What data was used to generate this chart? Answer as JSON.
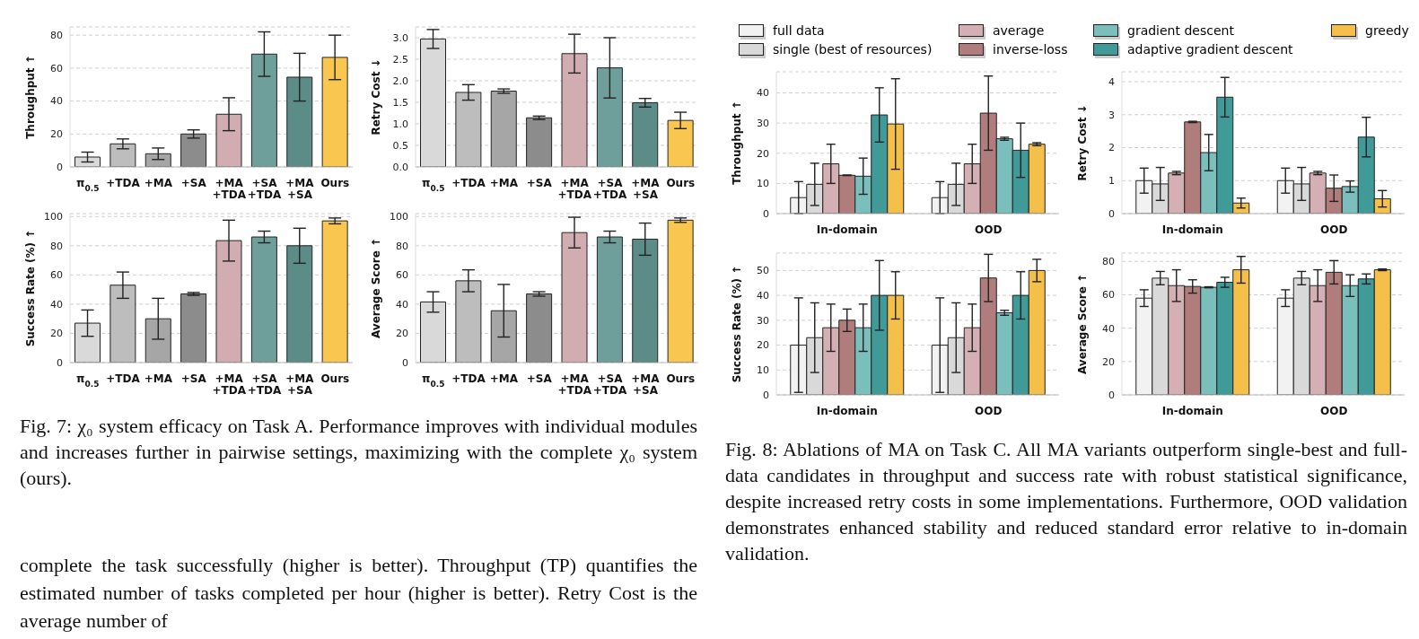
{
  "chart_data": [
    {
      "type": "bar",
      "ylabel": "Throughput ↑",
      "categories": [
        "π$_{0.5}$",
        "+TDA",
        "+MA",
        "+SA",
        "+MA +TDA",
        "+SA +TDA",
        "+MA +SA",
        "Ours"
      ],
      "values": [
        6,
        14,
        8,
        20,
        32,
        68.5,
        54.5,
        66.5
      ],
      "errors": [
        3,
        3,
        3.5,
        2.5,
        10,
        13.5,
        14.5,
        13.5
      ],
      "colors": [
        "#d9d9d9",
        "#bdbdbd",
        "#a6a6a6",
        "#8c8c8c",
        "#d1adb1",
        "#6f9f9b",
        "#5b8c88",
        "#f9c74f"
      ],
      "ylim": [
        0,
        85
      ],
      "yticks": [
        0,
        20,
        40,
        60,
        80
      ],
      "grid": "y"
    },
    {
      "type": "bar",
      "ylabel": "Retry Cost ↓",
      "categories": [
        "π$_{0.5}$",
        "+TDA",
        "+MA",
        "+SA",
        "+MA +TDA",
        "+SA +TDA",
        "+MA +SA",
        "Ours"
      ],
      "values": [
        2.97,
        1.73,
        1.76,
        1.14,
        2.63,
        2.3,
        1.49,
        1.08
      ],
      "errors": [
        0.22,
        0.18,
        0.05,
        0.04,
        0.45,
        0.7,
        0.1,
        0.19
      ],
      "colors": [
        "#d9d9d9",
        "#bdbdbd",
        "#a6a6a6",
        "#8c8c8c",
        "#d1adb1",
        "#6f9f9b",
        "#5b8c88",
        "#f9c74f"
      ],
      "ylim": [
        0,
        3.25
      ],
      "yticks": [
        {
          "value": 0,
          "label": "0.0"
        },
        {
          "value": 0.5,
          "label": "0.5"
        },
        {
          "value": 1,
          "label": "1.0"
        },
        {
          "value": 1.5,
          "label": "1.5"
        },
        {
          "value": 2,
          "label": "2.0"
        },
        {
          "value": 2.5,
          "label": "2.5"
        },
        {
          "value": 3,
          "label": "3.0"
        }
      ],
      "grid": "y"
    },
    {
      "type": "bar",
      "ylabel": "Success Rate (%) ↑",
      "categories": [
        "π$_{0.5}$",
        "+TDA",
        "+MA",
        "+SA",
        "+MA +TDA",
        "+SA +TDA",
        "+MA +SA",
        "Ours"
      ],
      "values": [
        27,
        53,
        30,
        47,
        83.5,
        86,
        80,
        97
      ],
      "errors": [
        9,
        9,
        14,
        1,
        14,
        4,
        12,
        2
      ],
      "colors": [
        "#d9d9d9",
        "#bdbdbd",
        "#a6a6a6",
        "#8c8c8c",
        "#d1adb1",
        "#6f9f9b",
        "#5b8c88",
        "#f9c74f"
      ],
      "ylim": [
        0,
        102
      ],
      "yticks": [
        0,
        20,
        40,
        60,
        80,
        100
      ],
      "grid": "y"
    },
    {
      "type": "bar",
      "ylabel": "Average Score ↑",
      "categories": [
        "π$_{0.5}$",
        "+TDA",
        "+MA",
        "+SA",
        "+MA +TDA",
        "+SA +TDA",
        "+MA +SA",
        "Ours"
      ],
      "values": [
        41.5,
        56,
        35.5,
        47,
        89,
        86,
        84.5,
        97.5
      ],
      "errors": [
        7,
        7.5,
        18,
        1.5,
        10.5,
        4,
        11,
        1.5
      ],
      "colors": [
        "#d9d9d9",
        "#bdbdbd",
        "#a6a6a6",
        "#8c8c8c",
        "#d1adb1",
        "#6f9f9b",
        "#5b8c88",
        "#f9c74f"
      ],
      "ylim": [
        0,
        102
      ],
      "yticks": [
        0,
        20,
        40,
        60,
        80,
        100
      ],
      "grid": "y",
      "annotations": [
        "Fig. 7: χ₀ system efficacy on Task A. Performance improves with individual modules and increases further in pairwise settings, maximizing with the complete χ₀ system (ours).",
        "complete the task successfully (higher is better). Throughput (TP) quantifies the estimated number of tasks completed per hour (higher is better). Retry Cost is the average number of"
      ]
    },
    {
      "type": "bar",
      "ylabel": "Throughput ↑",
      "categories": [
        "In-domain",
        "OOD"
      ],
      "legend": "top",
      "ylim": [
        0,
        47
      ],
      "yticks": [
        0,
        10,
        20,
        30,
        40
      ],
      "grid": "y",
      "series": [
        {
          "name": "full data",
          "color": "#f2f2f2",
          "values": [
            5.3,
            5.3
          ],
          "errors": [
            5.3,
            5.3
          ]
        },
        {
          "name": "single (best of resources)",
          "color": "#d9d9d9",
          "values": [
            9.7,
            9.7
          ],
          "errors": [
            7,
            7
          ]
        },
        {
          "name": "average",
          "color": "#d4b0b4",
          "values": [
            16.5,
            16.5
          ],
          "errors": [
            6.5,
            6.5
          ]
        },
        {
          "name": "inverse-loss",
          "color": "#b07c7c",
          "values": [
            12.7,
            33.3
          ],
          "errors": [
            0.1,
            12.3
          ]
        },
        {
          "name": "gradient descent",
          "color": "#7bbfbd",
          "values": [
            12.4,
            24.8
          ],
          "errors": [
            6,
            0.5
          ]
        },
        {
          "name": "adaptive gradient descent",
          "color": "#3f9a98",
          "values": [
            32.7,
            21
          ],
          "errors": [
            9,
            9
          ]
        },
        {
          "name": "greedy",
          "color": "#f5c04a",
          "values": [
            29.7,
            23
          ],
          "errors": [
            15,
            0.5
          ]
        }
      ]
    },
    {
      "type": "bar",
      "ylabel": "Retry Cost ↓",
      "categories": [
        "In-domain",
        "OOD"
      ],
      "ylim": [
        0,
        4.3
      ],
      "yticks": [
        0,
        1,
        2,
        3,
        4
      ],
      "grid": "y",
      "series": [
        {
          "color": "#f2f2f2",
          "values": [
            1,
            1
          ],
          "errors": [
            0.38,
            0.38
          ]
        },
        {
          "color": "#d9d9d9",
          "values": [
            0.9,
            0.9
          ],
          "errors": [
            0.5,
            0.5
          ]
        },
        {
          "color": "#d4b0b4",
          "values": [
            1.23,
            1.23
          ],
          "errors": [
            0.05,
            0.05
          ]
        },
        {
          "color": "#b07c7c",
          "values": [
            2.78,
            0.77
          ],
          "errors": [
            0.02,
            0.4
          ]
        },
        {
          "color": "#7bbfbd",
          "values": [
            1.85,
            0.82
          ],
          "errors": [
            0.55,
            0.17
          ]
        },
        {
          "color": "#3f9a98",
          "values": [
            3.53,
            2.32
          ],
          "errors": [
            0.6,
            0.6
          ]
        },
        {
          "color": "#f5c04a",
          "values": [
            0.32,
            0.45
          ],
          "errors": [
            0.15,
            0.25
          ]
        }
      ]
    },
    {
      "type": "bar",
      "ylabel": "Success Rate (%) ↑",
      "categories": [
        "In-domain",
        "OOD"
      ],
      "ylim": [
        0,
        57
      ],
      "yticks": [
        0,
        10,
        20,
        30,
        40,
        50
      ],
      "grid": "y",
      "series": [
        {
          "color": "#f2f2f2",
          "values": [
            20,
            20
          ],
          "errors": [
            19,
            19
          ]
        },
        {
          "color": "#d9d9d9",
          "values": [
            23,
            23
          ],
          "errors": [
            14,
            14
          ]
        },
        {
          "color": "#d4b0b4",
          "values": [
            27,
            27
          ],
          "errors": [
            9.5,
            9.5
          ]
        },
        {
          "color": "#b07c7c",
          "values": [
            30,
            47
          ],
          "errors": [
            4.5,
            9.5
          ]
        },
        {
          "color": "#7bbfbd",
          "values": [
            27,
            33
          ],
          "errors": [
            9.5,
            1
          ]
        },
        {
          "color": "#3f9a98",
          "values": [
            40,
            40
          ],
          "errors": [
            14,
            9.5
          ]
        },
        {
          "color": "#f5c04a",
          "values": [
            40,
            50
          ],
          "errors": [
            9.5,
            4.5
          ]
        }
      ]
    },
    {
      "type": "bar",
      "ylabel": "Average Score ↑",
      "categories": [
        "In-domain",
        "OOD"
      ],
      "ylim": [
        0,
        85
      ],
      "yticks": [
        0,
        20,
        40,
        60,
        80
      ],
      "grid": "y",
      "annotations": [
        "Fig. 8: Ablations of MA on Task C. All MA variants outperform single-best and full-data candidates in throughput and success rate with robust statistical significance, despite increased retry costs in some implementations. Furthermore, OOD validation demonstrates enhanced stability and reduced standard error relative to in-domain validation."
      ],
      "series": [
        {
          "color": "#f2f2f2",
          "values": [
            58,
            58
          ],
          "errors": [
            5,
            5
          ]
        },
        {
          "color": "#d9d9d9",
          "values": [
            70,
            70
          ],
          "errors": [
            4,
            4
          ]
        },
        {
          "color": "#d4b0b4",
          "values": [
            65.5,
            65.5
          ],
          "errors": [
            9.5,
            9.5
          ]
        },
        {
          "color": "#b07c7c",
          "values": [
            65,
            73.5
          ],
          "errors": [
            4,
            7
          ]
        },
        {
          "color": "#7bbfbd",
          "values": [
            64.5,
            65.5
          ],
          "errors": [
            0.3,
            6.5
          ]
        },
        {
          "color": "#3f9a98",
          "values": [
            67.5,
            69.5
          ],
          "errors": [
            3,
            3
          ]
        },
        {
          "color": "#f5c04a",
          "values": [
            75,
            75
          ],
          "errors": [
            8,
            0.5
          ]
        }
      ]
    }
  ]
}
